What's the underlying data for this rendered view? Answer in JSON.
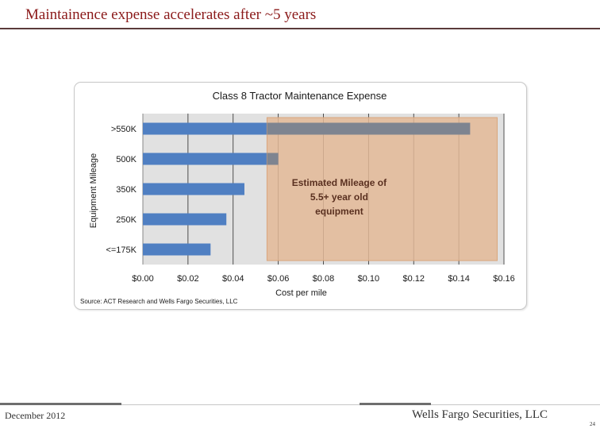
{
  "slide": {
    "title": "Maintainence expense accelerates after ~5 years",
    "footer_date": "December 2012",
    "footer_brand": "Wells Fargo Securities, LLC",
    "page_number": "24",
    "source": "Source: ACT Research and Wells Fargo Securities, LLC"
  },
  "chart_data": {
    "type": "bar",
    "orientation": "horizontal",
    "title": "Class 8 Tractor Maintenance Expense",
    "xlabel": "Cost per mile",
    "ylabel": "Equipment Mileage",
    "categories": [
      ">550K",
      "500K",
      "350K",
      "250K",
      "<=175K"
    ],
    "values": [
      0.145,
      0.06,
      0.045,
      0.037,
      0.03
    ],
    "xlim": [
      0,
      0.16
    ],
    "x_ticks": [
      0,
      0.02,
      0.04,
      0.06,
      0.08,
      0.1,
      0.12,
      0.14,
      0.16
    ],
    "x_tick_labels": [
      "$0.00",
      "$0.02",
      "$0.04",
      "$0.06",
      "$0.08",
      "$0.10",
      "$0.12",
      "$0.14",
      "$0.16"
    ],
    "grid": "vertical",
    "highlight_region": {
      "x_start": 0.055,
      "x_end": 0.157,
      "label_lines": [
        "Estimated Mileage of",
        "5.5+ year old",
        "equipment"
      ]
    },
    "colors": {
      "bar": "#4f7fc2",
      "bar_overlap": "#7e8490",
      "plot_background": "#e1e1e1",
      "highlight": "#e3b896",
      "highlight_text": "#5a3020",
      "grid": "#2a2a2a"
    }
  }
}
